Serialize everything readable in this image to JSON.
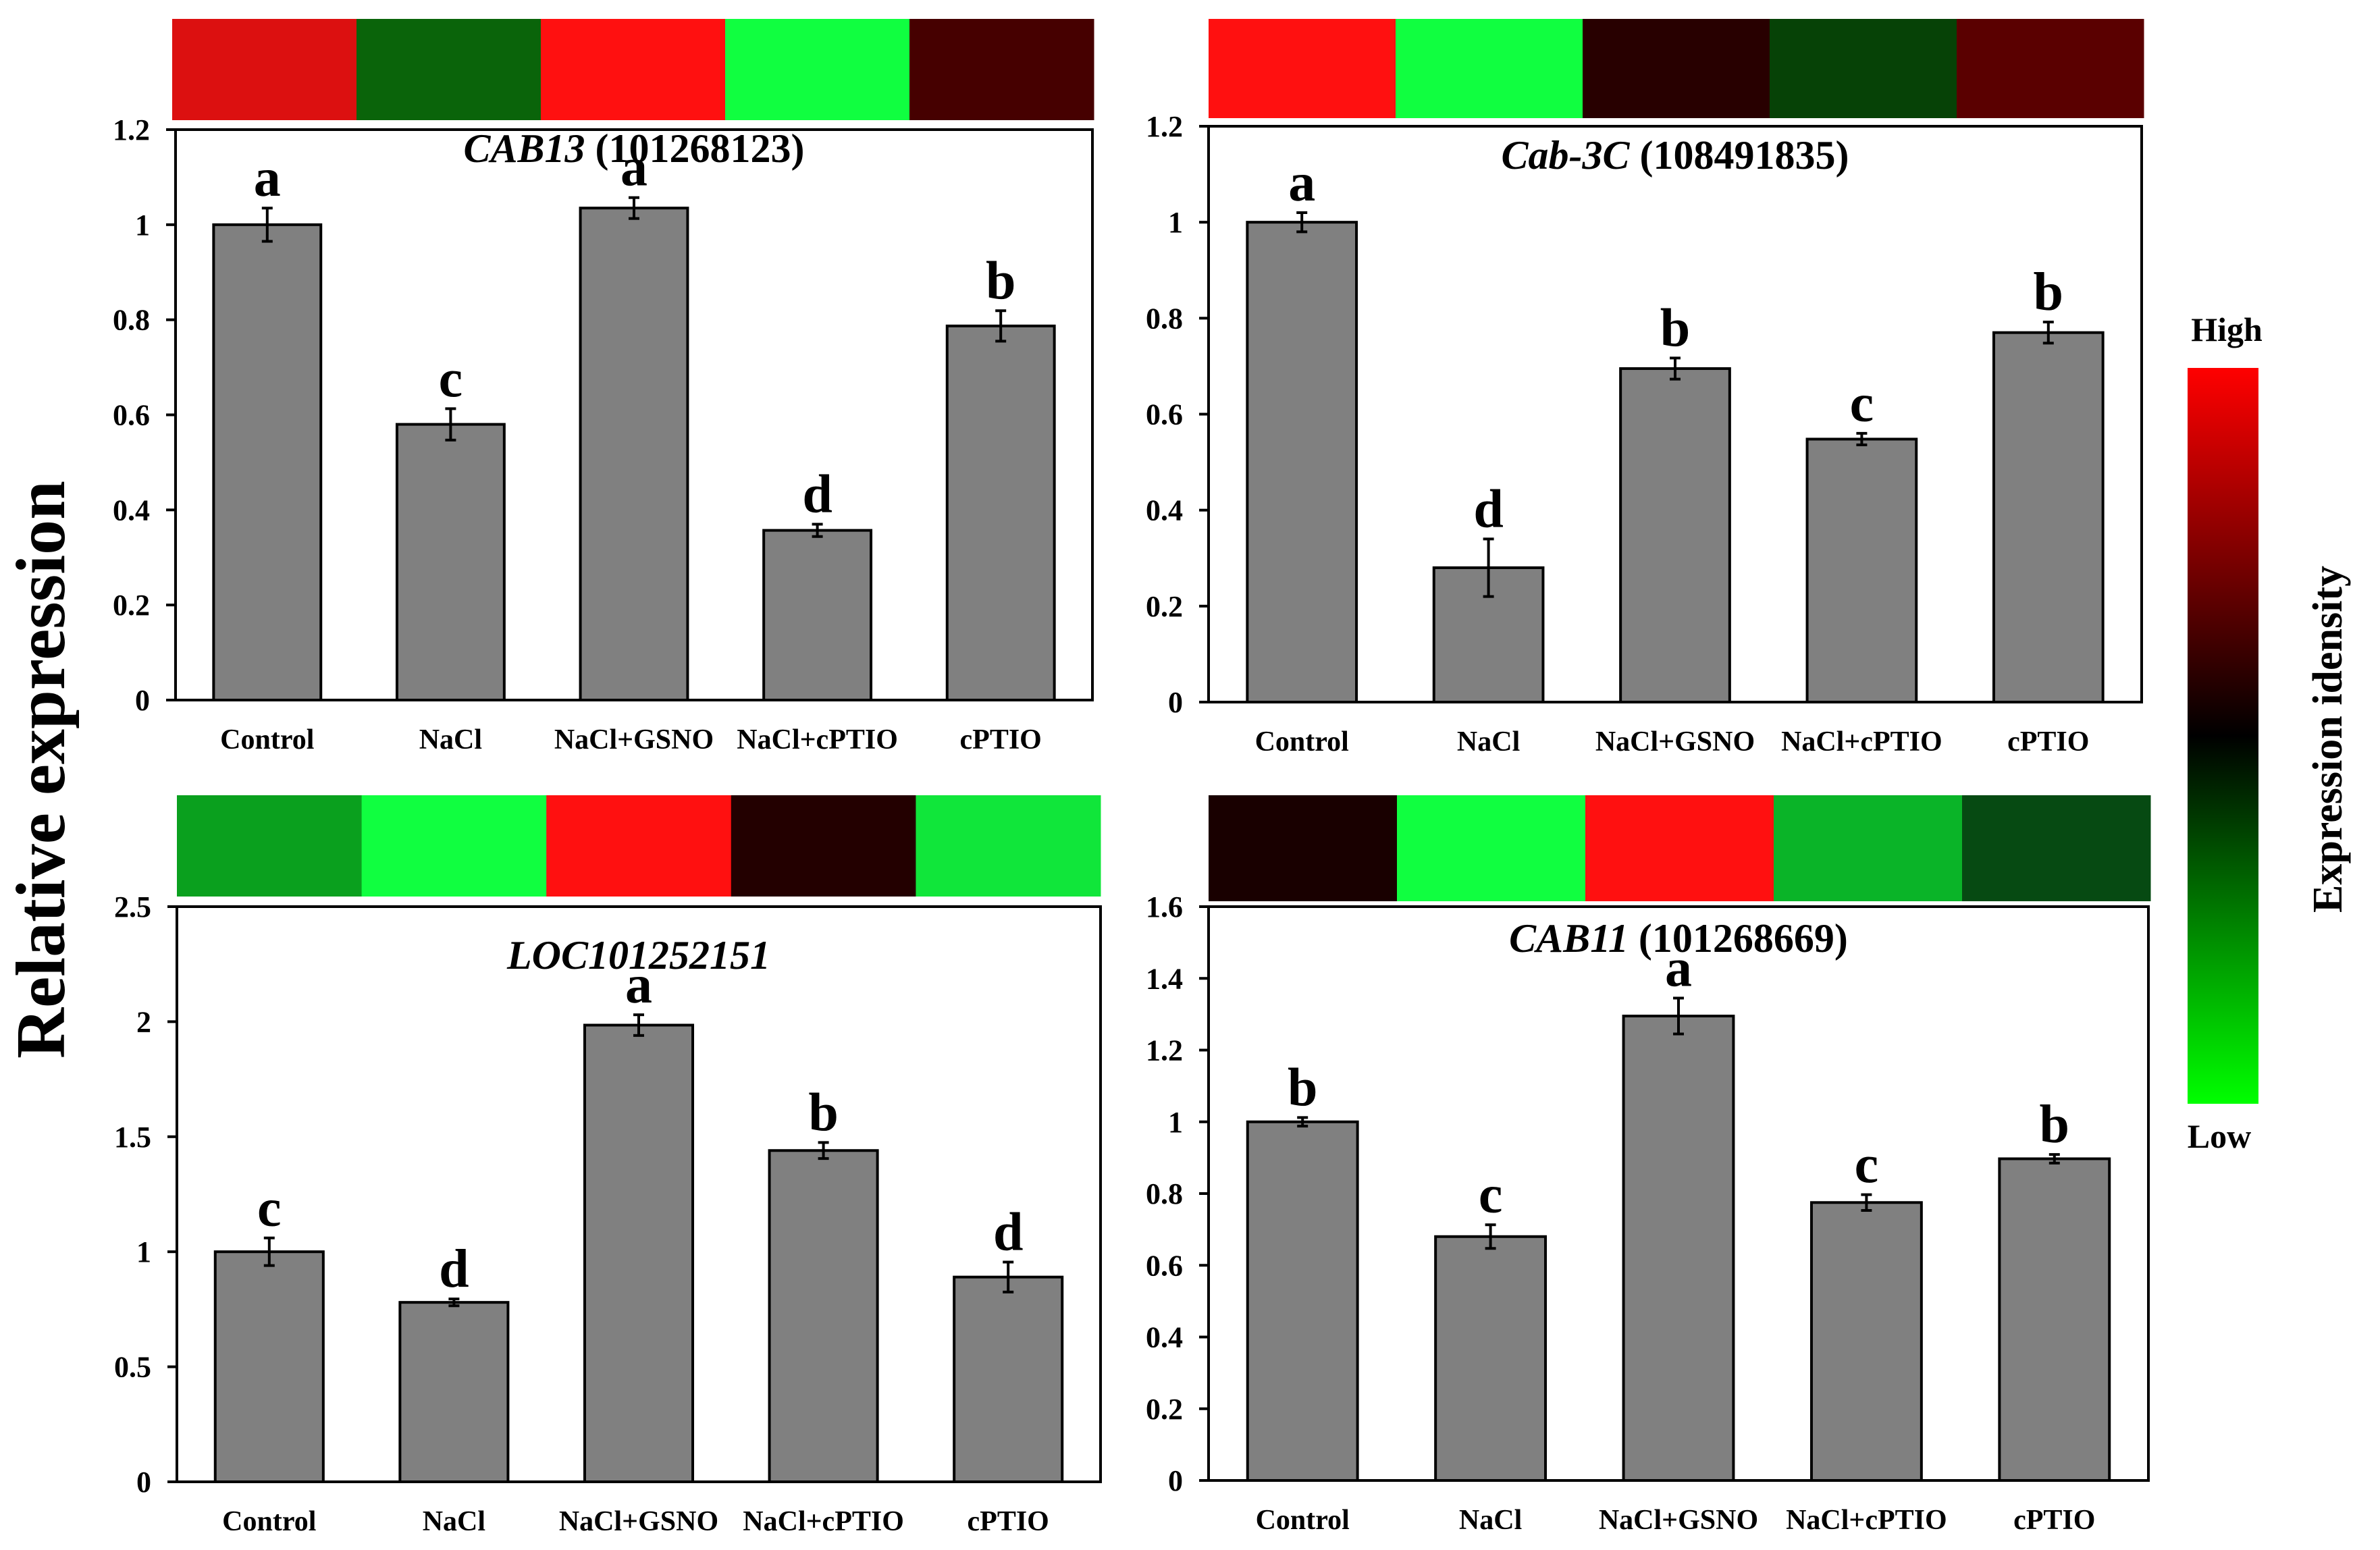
{
  "ylabel": "Relative expression",
  "colorbar": {
    "title": "Expression idensity",
    "high_label": "High",
    "low_label": "Low",
    "colors": [
      "#ff0000",
      "#000000",
      "#00ff00"
    ]
  },
  "bar_color": "#808080",
  "chart_data": [
    {
      "type": "bar",
      "title_italic": "CAB13",
      "title_rest": " (101268123)",
      "categories": [
        "Control",
        "NaCl",
        "NaCl+GSNO",
        "NaCl+cPTIO",
        "cPTIO"
      ],
      "values": [
        1.0,
        0.58,
        1.035,
        0.357,
        0.787
      ],
      "errors": [
        0.035,
        0.033,
        0.022,
        0.013,
        0.032
      ],
      "letters": [
        "a",
        "c",
        "a",
        "d",
        "b"
      ],
      "ylim": [
        0,
        1.2
      ],
      "yticks": [
        0,
        0.2,
        0.4,
        0.6,
        0.8,
        1,
        1.2
      ],
      "heatmap_colors": [
        "#dc1010",
        "#0a640a",
        "#ff1010",
        "#10ff40",
        "#460000"
      ]
    },
    {
      "type": "bar",
      "title_italic": "Cab-3C",
      "title_rest": " (108491835)",
      "categories": [
        "Control",
        "NaCl",
        "NaCl+GSNO",
        "NaCl+cPTIO",
        "cPTIO"
      ],
      "values": [
        1.0,
        0.28,
        0.695,
        0.548,
        0.77
      ],
      "errors": [
        0.02,
        0.06,
        0.022,
        0.012,
        0.022
      ],
      "letters": [
        "a",
        "d",
        "b",
        "c",
        "b"
      ],
      "ylim": [
        0,
        1.2
      ],
      "yticks": [
        0,
        0.2,
        0.4,
        0.6,
        0.8,
        1,
        1.2
      ],
      "heatmap_colors": [
        "#ff1010",
        "#10ff40",
        "#280000",
        "#064206",
        "#5a0000"
      ]
    },
    {
      "type": "bar",
      "title_italic": "LOC101252151",
      "title_rest": "",
      "categories": [
        "Control",
        "NaCl",
        "NaCl+GSNO",
        "NaCl+cPTIO",
        "cPTIO"
      ],
      "values": [
        1.0,
        0.78,
        1.985,
        1.44,
        0.89
      ],
      "errors": [
        0.06,
        0.015,
        0.045,
        0.035,
        0.065
      ],
      "letters": [
        "c",
        "d",
        "a",
        "b",
        "d"
      ],
      "ylim": [
        0,
        2.5
      ],
      "yticks": [
        0,
        0.5,
        1,
        1.5,
        2,
        2.5
      ],
      "heatmap_colors": [
        "#0aa01e",
        "#10ff40",
        "#ff1010",
        "#230000",
        "#10e63a"
      ]
    },
    {
      "type": "bar",
      "title_italic": "CAB11",
      "title_rest": " (101268669)",
      "categories": [
        "Control",
        "NaCl",
        "NaCl+GSNO",
        "NaCl+cPTIO",
        "cPTIO"
      ],
      "values": [
        1.0,
        0.68,
        1.295,
        0.775,
        0.897
      ],
      "errors": [
        0.012,
        0.033,
        0.05,
        0.022,
        0.012
      ],
      "letters": [
        "b",
        "c",
        "a",
        "c",
        "b"
      ],
      "ylim": [
        0,
        1.6
      ],
      "yticks": [
        0,
        0.2,
        0.4,
        0.6,
        0.8,
        1,
        1.2,
        1.4,
        1.6
      ],
      "heatmap_colors": [
        "#190000",
        "#10ff40",
        "#ff1010",
        "#0ab428",
        "#064a12"
      ]
    }
  ]
}
